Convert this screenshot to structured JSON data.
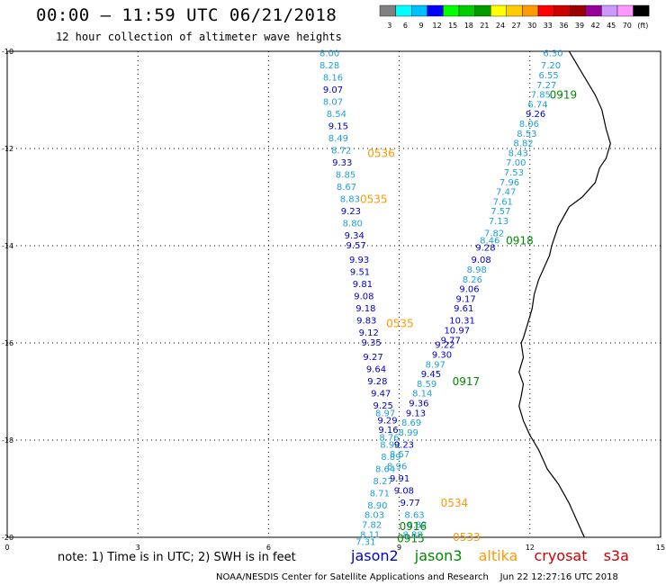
{
  "header": {
    "title": "00:00 – 11:59 UTC 06/21/2018",
    "subtitle": "12 hour collection of altimeter wave heights"
  },
  "color_scale": {
    "colors": [
      "#808080",
      "#00ffff",
      "#00bfff",
      "#0000ff",
      "#00ff00",
      "#00cc00",
      "#009900",
      "#ffff00",
      "#ffcc00",
      "#ff9900",
      "#ff0000",
      "#cc0000",
      "#990000",
      "#990099",
      "#cc99ff",
      "#ff99ff",
      "#000000"
    ],
    "labels": [
      "3",
      "6",
      "9",
      "12",
      "15",
      "18",
      "21",
      "24",
      "27",
      "30",
      "33",
      "36",
      "39",
      "42",
      "45",
      "70",
      "(ft)"
    ]
  },
  "axes": {
    "x_labels": [
      "0",
      "3",
      "6",
      "9",
      "12",
      "15"
    ],
    "y_labels": [
      "-10",
      "-12",
      "-14",
      "-16",
      "-18",
      "-20"
    ]
  },
  "sats": {
    "jason2": {
      "name": "jason2",
      "color": "#0000cc"
    },
    "jason3": {
      "name": "jason3",
      "color": "#008800"
    },
    "altika": {
      "name": "altika",
      "color": "#ff9900"
    },
    "cryosat": {
      "name": "cryosat",
      "color": "#cc0000"
    },
    "s3a": {
      "name": "s3a",
      "color": "#cc0000"
    }
  },
  "pass_labels": [
    {
      "text": "0536",
      "sat": "altika",
      "lon": 8.27,
      "lat": -12.1
    },
    {
      "text": "0535",
      "sat": "altika",
      "lon": 8.1,
      "lat": -13.05
    },
    {
      "text": "0535",
      "sat": "altika",
      "lon": 8.7,
      "lat": -15.6
    },
    {
      "text": "0534",
      "sat": "altika",
      "lon": 9.95,
      "lat": -19.3
    },
    {
      "text": "0533",
      "sat": "altika",
      "lon": 10.23,
      "lat": -20.0
    },
    {
      "text": "0919",
      "sat": "jason3",
      "lon": 12.45,
      "lat": -10.9
    },
    {
      "text": "0918",
      "sat": "jason3",
      "lon": 11.45,
      "lat": -13.9
    },
    {
      "text": "0917",
      "sat": "jason3",
      "lon": 10.22,
      "lat": -16.8
    },
    {
      "text": "0916",
      "sat": "jason3",
      "lon": 9.0,
      "lat": -19.78
    },
    {
      "text": "0915",
      "sat": "jason3",
      "lon": 8.95,
      "lat": -20.03
    }
  ],
  "tracks": [
    {
      "lon": 7.17,
      "lat": -10.05,
      "v": "8.00"
    },
    {
      "lon": 7.17,
      "lat": -10.3,
      "v": "8.28"
    },
    {
      "lon": 7.25,
      "lat": -10.55,
      "v": "8.16"
    },
    {
      "lon": 7.25,
      "lat": -10.8,
      "v": "9.07"
    },
    {
      "lon": 7.25,
      "lat": -11.05,
      "v": "8.07"
    },
    {
      "lon": 7.33,
      "lat": -11.3,
      "v": "8.54"
    },
    {
      "lon": 7.37,
      "lat": -11.55,
      "v": "9.15"
    },
    {
      "lon": 7.37,
      "lat": -11.8,
      "v": "8.49"
    },
    {
      "lon": 7.44,
      "lat": -12.05,
      "v": "8.72"
    },
    {
      "lon": 7.46,
      "lat": -12.3,
      "v": "9.33"
    },
    {
      "lon": 7.54,
      "lat": -12.55,
      "v": "8.85"
    },
    {
      "lon": 7.56,
      "lat": -12.8,
      "v": "8.67"
    },
    {
      "lon": 7.64,
      "lat": -13.05,
      "v": "8.83"
    },
    {
      "lon": 7.66,
      "lat": -13.3,
      "v": "9.23"
    },
    {
      "lon": 7.7,
      "lat": -13.55,
      "v": "8.80"
    },
    {
      "lon": 7.74,
      "lat": -13.8,
      "v": "9.34"
    },
    {
      "lon": 7.78,
      "lat": -14.0,
      "v": "9.57"
    },
    {
      "lon": 7.85,
      "lat": -14.3,
      "v": "9.93"
    },
    {
      "lon": 7.87,
      "lat": -14.55,
      "v": "9.51"
    },
    {
      "lon": 7.93,
      "lat": -14.8,
      "v": "9.81"
    },
    {
      "lon": 7.96,
      "lat": -15.05,
      "v": "9.08"
    },
    {
      "lon": 8.0,
      "lat": -15.3,
      "v": "9.18"
    },
    {
      "lon": 8.02,
      "lat": -15.55,
      "v": "9.83"
    },
    {
      "lon": 8.07,
      "lat": -15.8,
      "v": "9.12"
    },
    {
      "lon": 8.13,
      "lat": -16.0,
      "v": "9.35"
    },
    {
      "lon": 8.17,
      "lat": -16.3,
      "v": "9.27"
    },
    {
      "lon": 8.24,
      "lat": -16.55,
      "v": "9.64"
    },
    {
      "lon": 8.27,
      "lat": -16.8,
      "v": "9.28"
    },
    {
      "lon": 8.35,
      "lat": -17.05,
      "v": "9.47"
    },
    {
      "lon": 8.4,
      "lat": -17.3,
      "v": "9.25"
    },
    {
      "lon": 8.45,
      "lat": -17.45,
      "v": "8.97"
    },
    {
      "lon": 8.5,
      "lat": -17.6,
      "v": "9.29"
    },
    {
      "lon": 8.52,
      "lat": -17.8,
      "v": "9.16"
    },
    {
      "lon": 8.54,
      "lat": -17.95,
      "v": "8.76"
    },
    {
      "lon": 8.56,
      "lat": -18.1,
      "v": "8.90"
    },
    {
      "lon": 8.58,
      "lat": -18.35,
      "v": "8.89"
    },
    {
      "lon": 8.45,
      "lat": -18.6,
      "v": "8.64"
    },
    {
      "lon": 8.4,
      "lat": -18.85,
      "v": "8.27"
    },
    {
      "lon": 8.32,
      "lat": -19.1,
      "v": "8.71"
    },
    {
      "lon": 8.27,
      "lat": -19.35,
      "v": "8.90"
    },
    {
      "lon": 8.2,
      "lat": -19.55,
      "v": "8.03"
    },
    {
      "lon": 8.14,
      "lat": -19.75,
      "v": "7.82"
    },
    {
      "lon": 8.1,
      "lat": -19.95,
      "v": "8.11"
    },
    {
      "lon": 8.0,
      "lat": -20.1,
      "v": "7.31"
    },
    {
      "lon": 12.3,
      "lat": -10.05,
      "v": "6.30"
    },
    {
      "lon": 12.25,
      "lat": -10.3,
      "v": "7.20"
    },
    {
      "lon": 12.2,
      "lat": -10.5,
      "v": "6.55"
    },
    {
      "lon": 12.15,
      "lat": -10.7,
      "v": "7.27"
    },
    {
      "lon": 12.02,
      "lat": -10.9,
      "v": "7.85"
    },
    {
      "lon": 11.95,
      "lat": -11.1,
      "v": "6.74"
    },
    {
      "lon": 11.9,
      "lat": -11.3,
      "v": "9.26"
    },
    {
      "lon": 11.75,
      "lat": -11.5,
      "v": "8.06"
    },
    {
      "lon": 11.7,
      "lat": -11.7,
      "v": "8.53"
    },
    {
      "lon": 11.62,
      "lat": -11.9,
      "v": "8.82"
    },
    {
      "lon": 11.5,
      "lat": -12.1,
      "v": "8.43"
    },
    {
      "lon": 11.45,
      "lat": -12.3,
      "v": "7.00"
    },
    {
      "lon": 11.4,
      "lat": -12.5,
      "v": "7.53"
    },
    {
      "lon": 11.3,
      "lat": -12.7,
      "v": "7.96"
    },
    {
      "lon": 11.22,
      "lat": -12.9,
      "v": "7.47"
    },
    {
      "lon": 11.15,
      "lat": -13.1,
      "v": "7.61"
    },
    {
      "lon": 11.1,
      "lat": -13.3,
      "v": "7.57"
    },
    {
      "lon": 11.05,
      "lat": -13.5,
      "v": "7.13"
    },
    {
      "lon": 10.95,
      "lat": -13.75,
      "v": "7.82"
    },
    {
      "lon": 10.85,
      "lat": -13.9,
      "v": "8.46"
    },
    {
      "lon": 10.75,
      "lat": -14.05,
      "v": "9.28"
    },
    {
      "lon": 10.65,
      "lat": -14.3,
      "v": "9.08"
    },
    {
      "lon": 10.55,
      "lat": -14.5,
      "v": "8.98"
    },
    {
      "lon": 10.45,
      "lat": -14.7,
      "v": "8.26"
    },
    {
      "lon": 10.38,
      "lat": -14.9,
      "v": "9.06"
    },
    {
      "lon": 10.3,
      "lat": -15.1,
      "v": "9.17"
    },
    {
      "lon": 10.25,
      "lat": -15.3,
      "v": "9.61"
    },
    {
      "lon": 10.15,
      "lat": -15.55,
      "v": "10.31"
    },
    {
      "lon": 10.03,
      "lat": -15.75,
      "v": "10.97"
    },
    {
      "lon": 9.95,
      "lat": -15.95,
      "v": "9.77"
    },
    {
      "lon": 9.82,
      "lat": -16.05,
      "v": "9.22"
    },
    {
      "lon": 9.75,
      "lat": -16.25,
      "v": "9.30"
    },
    {
      "lon": 9.6,
      "lat": -16.45,
      "v": "8.97"
    },
    {
      "lon": 9.5,
      "lat": -16.65,
      "v": "9.45"
    },
    {
      "lon": 9.4,
      "lat": -16.85,
      "v": "8.59"
    },
    {
      "lon": 9.3,
      "lat": -17.05,
      "v": "8.14"
    },
    {
      "lon": 9.22,
      "lat": -17.25,
      "v": "9.36"
    },
    {
      "lon": 9.15,
      "lat": -17.45,
      "v": "9.13"
    },
    {
      "lon": 9.05,
      "lat": -17.65,
      "v": "8.69"
    },
    {
      "lon": 8.98,
      "lat": -17.85,
      "v": "8.99"
    },
    {
      "lon": 8.88,
      "lat": -18.1,
      "v": "9.23"
    },
    {
      "lon": 8.78,
      "lat": -18.3,
      "v": "8.67"
    },
    {
      "lon": 8.72,
      "lat": -18.55,
      "v": "8.96"
    },
    {
      "lon": 8.78,
      "lat": -18.8,
      "v": "9.91"
    },
    {
      "lon": 8.88,
      "lat": -19.05,
      "v": "9.08"
    },
    {
      "lon": 9.02,
      "lat": -19.3,
      "v": "9.77"
    },
    {
      "lon": 9.12,
      "lat": -19.55,
      "v": "8.63"
    },
    {
      "lon": 9.18,
      "lat": -19.75,
      "v": "8.82"
    },
    {
      "lon": 9.08,
      "lat": -19.95,
      "v": "8.88"
    }
  ],
  "footer": {
    "note": "note: 1) Time is in UTC; 2) SWH is in feet",
    "credit": "NOAA/NESDIS Center for Satellite Applications and Research    Jun 22 12:27:16 UTC 2018"
  }
}
